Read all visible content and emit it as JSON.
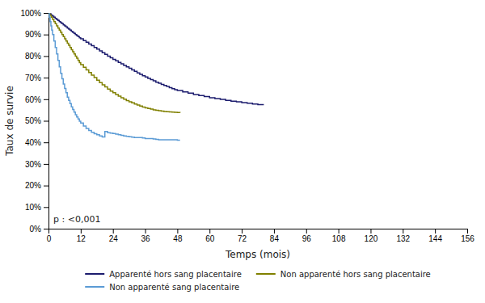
{
  "chart_data": {
    "type": "line",
    "line_style": "step",
    "xlabel": "Temps (mois)",
    "ylabel": "Taux de survie",
    "annotation": "p : <0,001",
    "grid": false,
    "legend": "bottom",
    "xlim": [
      0,
      156
    ],
    "ylim": [
      0,
      1.0
    ],
    "xticks": [
      0,
      12,
      24,
      36,
      48,
      60,
      72,
      84,
      96,
      108,
      120,
      132,
      144,
      156
    ],
    "yticks": [
      {
        "value": 0.0,
        "label": "0%"
      },
      {
        "value": 0.1,
        "label": "10%"
      },
      {
        "value": 0.2,
        "label": "20%"
      },
      {
        "value": 0.3,
        "label": "30%"
      },
      {
        "value": 0.4,
        "label": "40%"
      },
      {
        "value": 0.5,
        "label": "50%"
      },
      {
        "value": 0.6,
        "label": "60%"
      },
      {
        "value": 0.7,
        "label": "70%"
      },
      {
        "value": 0.8,
        "label": "80%"
      },
      {
        "value": 0.9,
        "label": "90%"
      },
      {
        "value": 1.0,
        "label": "100%"
      }
    ],
    "series": [
      {
        "name": "Apparenté hors sang placentaire",
        "color": "#1c1c6e",
        "x": [
          0,
          0.5,
          1,
          1.5,
          2,
          2.5,
          3,
          3.5,
          4,
          4.5,
          5,
          5.5,
          6,
          6.5,
          7,
          7.5,
          8,
          8.5,
          9,
          9.5,
          10,
          10.5,
          11,
          11.5,
          12,
          13,
          14,
          15,
          16,
          17,
          18,
          19,
          20,
          21,
          22,
          23,
          24,
          25,
          26,
          27,
          28,
          29,
          30,
          31,
          32,
          33,
          34,
          35,
          36,
          37,
          38,
          39,
          40,
          41,
          42,
          43,
          44,
          45,
          46,
          47,
          48,
          50,
          52,
          54,
          56,
          58,
          60,
          62,
          64,
          66,
          68,
          70,
          72,
          74,
          76,
          78,
          80
        ],
        "values": [
          1.0,
          0.995,
          0.99,
          0.985,
          0.98,
          0.975,
          0.97,
          0.965,
          0.96,
          0.955,
          0.95,
          0.945,
          0.94,
          0.935,
          0.93,
          0.925,
          0.92,
          0.915,
          0.91,
          0.905,
          0.9,
          0.895,
          0.89,
          0.885,
          0.88,
          0.872,
          0.864,
          0.856,
          0.848,
          0.84,
          0.832,
          0.824,
          0.816,
          0.808,
          0.8,
          0.792,
          0.785,
          0.778,
          0.771,
          0.764,
          0.757,
          0.75,
          0.743,
          0.736,
          0.729,
          0.722,
          0.715,
          0.709,
          0.703,
          0.697,
          0.691,
          0.685,
          0.679,
          0.674,
          0.669,
          0.664,
          0.659,
          0.654,
          0.649,
          0.644,
          0.64,
          0.634,
          0.628,
          0.622,
          0.617,
          0.612,
          0.607,
          0.603,
          0.599,
          0.595,
          0.591,
          0.588,
          0.584,
          0.581,
          0.578,
          0.575,
          0.572
        ]
      },
      {
        "name": "Non apparenté hors sang placentaire",
        "color": "#808000",
        "x": [
          0,
          0.5,
          1,
          1.5,
          2,
          2.5,
          3,
          3.5,
          4,
          4.5,
          5,
          5.5,
          6,
          6.5,
          7,
          7.5,
          8,
          8.5,
          9,
          9.5,
          10,
          10.5,
          11,
          11.5,
          12,
          13,
          14,
          15,
          16,
          17,
          18,
          19,
          20,
          21,
          22,
          23,
          24,
          25,
          26,
          27,
          28,
          29,
          30,
          31,
          32,
          33,
          34,
          35,
          36,
          37,
          38,
          39,
          40,
          41,
          42,
          43,
          44,
          45,
          46,
          47,
          48,
          49
        ],
        "values": [
          1.0,
          0.99,
          0.98,
          0.97,
          0.96,
          0.95,
          0.94,
          0.93,
          0.92,
          0.91,
          0.9,
          0.89,
          0.88,
          0.87,
          0.86,
          0.85,
          0.84,
          0.83,
          0.82,
          0.81,
          0.8,
          0.79,
          0.78,
          0.77,
          0.76,
          0.748,
          0.736,
          0.724,
          0.712,
          0.7,
          0.688,
          0.677,
          0.667,
          0.657,
          0.647,
          0.638,
          0.63,
          0.622,
          0.614,
          0.607,
          0.6,
          0.594,
          0.588,
          0.583,
          0.578,
          0.573,
          0.568,
          0.564,
          0.56,
          0.557,
          0.554,
          0.551,
          0.549,
          0.547,
          0.545,
          0.543,
          0.542,
          0.541,
          0.54,
          0.539,
          0.538,
          0.537
        ]
      },
      {
        "name": "Non apparenté sang placentaire",
        "color": "#5b9bd5",
        "x": [
          0,
          0.3,
          0.6,
          0.9,
          1.2,
          1.5,
          2,
          2.5,
          3,
          3.5,
          4,
          4.5,
          5,
          5.5,
          6,
          6.5,
          7,
          7.5,
          8,
          8.5,
          9,
          9.5,
          10,
          10.5,
          11,
          11.5,
          12,
          13,
          14,
          15,
          16,
          17,
          18,
          19,
          20,
          21,
          22,
          23,
          24,
          25,
          26,
          27,
          28,
          29,
          30,
          31,
          32,
          33,
          34,
          35,
          36,
          37,
          38,
          39,
          40,
          41,
          42,
          43,
          44,
          45,
          46,
          47,
          48,
          49
        ],
        "values": [
          1.0,
          0.98,
          0.96,
          0.94,
          0.92,
          0.9,
          0.87,
          0.84,
          0.81,
          0.78,
          0.75,
          0.72,
          0.695,
          0.67,
          0.65,
          0.63,
          0.61,
          0.595,
          0.58,
          0.565,
          0.552,
          0.54,
          0.528,
          0.518,
          0.508,
          0.498,
          0.49,
          0.476,
          0.464,
          0.455,
          0.447,
          0.44,
          0.435,
          0.43,
          0.425,
          0.45,
          0.445,
          0.443,
          0.441,
          0.438,
          0.435,
          0.433,
          0.43,
          0.428,
          0.426,
          0.424,
          0.422,
          0.422,
          0.422,
          0.42,
          0.418,
          0.418,
          0.418,
          0.416,
          0.414,
          0.412,
          0.412,
          0.412,
          0.412,
          0.412,
          0.412,
          0.412,
          0.41,
          0.41
        ]
      }
    ]
  }
}
